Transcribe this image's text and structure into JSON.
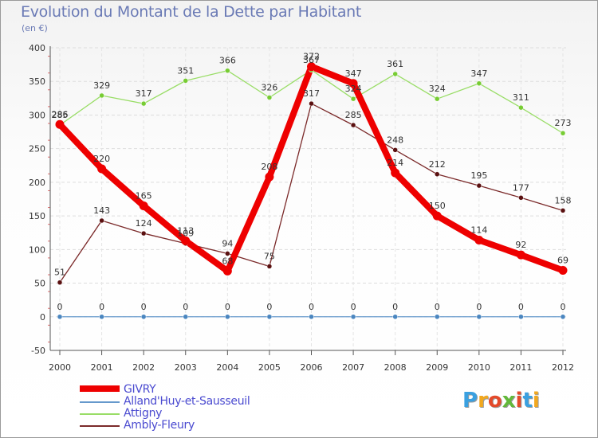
{
  "title": "Evolution du Montant de la Dette par Habitant",
  "subtitle": "(en €)",
  "chart_data": {
    "type": "line",
    "x": [
      "2000",
      "2001",
      "2002",
      "2003",
      "2004",
      "2005",
      "2006",
      "2007",
      "2008",
      "2009",
      "2010",
      "2011",
      "2012"
    ],
    "ylim": [
      -50,
      400
    ],
    "yticks": [
      -50,
      0,
      50,
      100,
      150,
      200,
      250,
      300,
      350,
      400
    ],
    "grid": true,
    "legend_position": "bottom-left",
    "series": [
      {
        "name": "Ambly-Fleury",
        "color": "#7b2a2a",
        "marker_color": "#5a1010",
        "thick": false,
        "values": [
          51,
          143,
          124,
          109,
          94,
          75,
          317,
          285,
          248,
          212,
          195,
          177,
          158
        ],
        "labels": [
          "51",
          "143",
          "124",
          "109",
          "94",
          "75",
          "317",
          "285",
          "248",
          "212",
          "195",
          "177",
          "158"
        ]
      },
      {
        "name": "Attigny",
        "color": "#99dd66",
        "marker_color": "#77cc33",
        "thick": false,
        "values": [
          285,
          329,
          317,
          351,
          366,
          326,
          367,
          324,
          361,
          324,
          347,
          311,
          273
        ],
        "labels": [
          "285",
          "329",
          "317",
          "351",
          "366",
          "326",
          "367",
          "324",
          "361",
          "324",
          "347",
          "311",
          "273"
        ]
      },
      {
        "name": "Alland'Huy-et-Sausseuil",
        "color": "#6699cc",
        "marker_color": "#4a86c0",
        "thick": false,
        "values": [
          0,
          0,
          0,
          0,
          0,
          0,
          0,
          0,
          0,
          0,
          0,
          0,
          0
        ],
        "labels": [
          "0",
          "0",
          "0",
          "0",
          "0",
          "0",
          "0",
          "0",
          "0",
          "0",
          "0",
          "0",
          "0"
        ]
      },
      {
        "name": "GIVRY",
        "color": "#ee0000",
        "marker_color": "#ee0000",
        "thick": true,
        "values": [
          286,
          220,
          165,
          113,
          68,
          208,
          372,
          347,
          214,
          150,
          114,
          92,
          69
        ],
        "labels": [
          "286",
          "220",
          "165",
          "113",
          "68",
          "208",
          "372",
          "347",
          "214",
          "150",
          "114",
          "92",
          "69"
        ]
      }
    ]
  },
  "legend": [
    {
      "label": "GIVRY",
      "color": "#ee0000",
      "thick": true
    },
    {
      "label": "Alland'Huy-et-Sausseuil",
      "color": "#6699cc",
      "thick": false
    },
    {
      "label": "Attigny",
      "color": "#99dd66",
      "thick": false
    },
    {
      "label": "Ambly-Fleury",
      "color": "#7b2a2a",
      "thick": false
    }
  ],
  "logo": {
    "letters": [
      {
        "char": "P",
        "color": "#3aa0e0"
      },
      {
        "char": "r",
        "color": "#f2a81e"
      },
      {
        "char": "o",
        "color": "#e44a2a"
      },
      {
        "char": "x",
        "color": "#63b83a"
      },
      {
        "char": "i",
        "color": "#e44a2a"
      },
      {
        "char": "t",
        "color": "#3aa0e0"
      },
      {
        "char": "i",
        "color": "#f2a81e"
      }
    ]
  }
}
